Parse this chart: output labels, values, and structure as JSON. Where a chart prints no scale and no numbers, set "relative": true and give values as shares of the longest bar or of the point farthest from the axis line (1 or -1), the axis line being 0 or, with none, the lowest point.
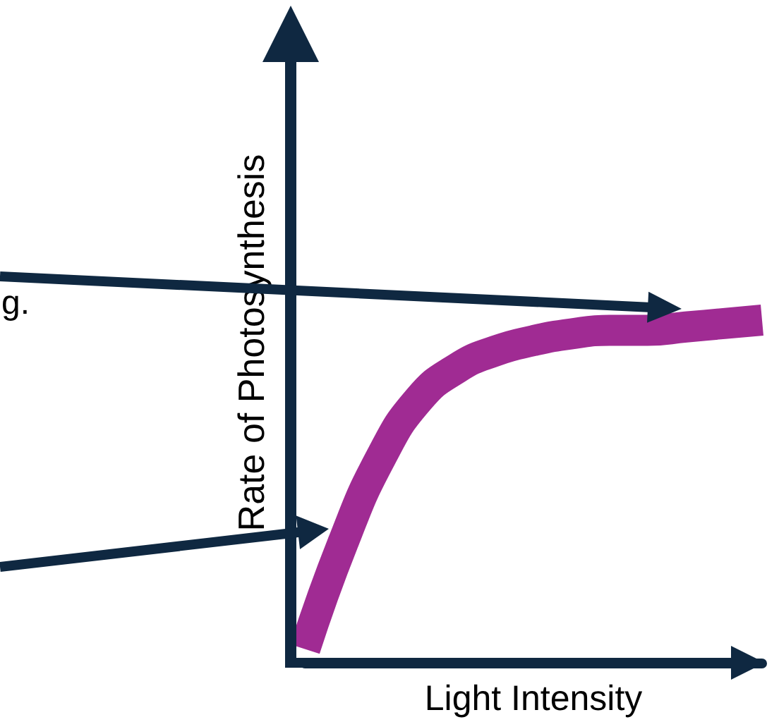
{
  "chart_data": {
    "type": "line",
    "relative": true,
    "xlabel": "Light Intensity",
    "ylabel": "Rate of Photosynthesis",
    "annotations": [
      "g."
    ],
    "marker": "none",
    "categories": [
      null,
      null,
      null,
      null,
      null,
      null,
      null,
      null,
      null,
      null,
      null,
      null,
      null
    ],
    "series": [
      {
        "color": "#a02b93",
        "values": [
          0.04,
          0.35,
          0.6,
          0.77,
          0.86,
          0.91,
          0.94,
          0.96,
          0.97,
          0.97,
          0.98,
          0.99,
          1
        ]
      }
    ]
  }
}
